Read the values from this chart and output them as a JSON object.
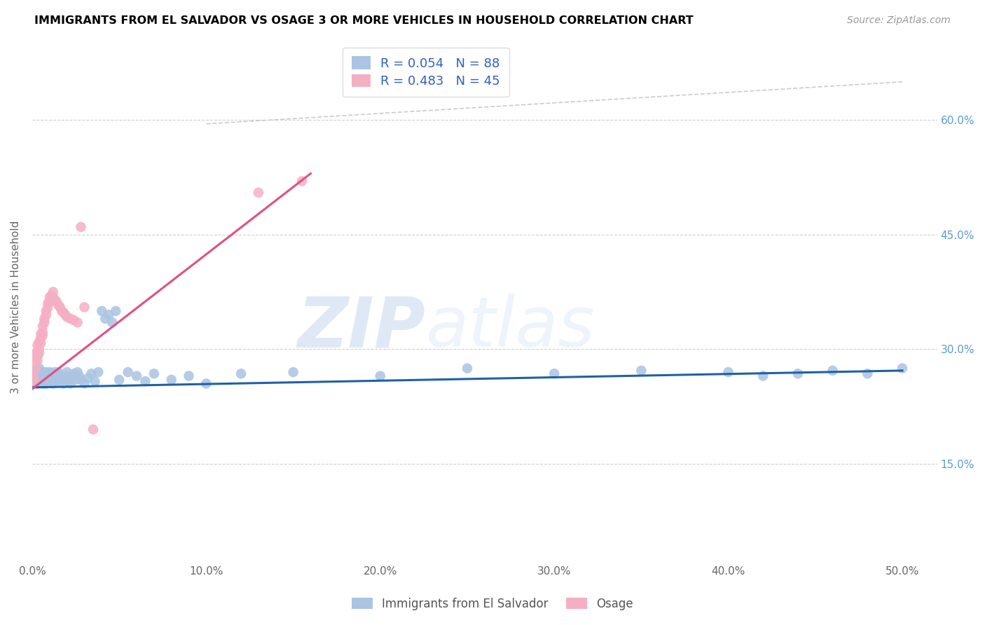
{
  "title": "IMMIGRANTS FROM EL SALVADOR VS OSAGE 3 OR MORE VEHICLES IN HOUSEHOLD CORRELATION CHART",
  "source": "Source: ZipAtlas.com",
  "ylabel": "3 or more Vehicles in Household",
  "ytick_labels": [
    "15.0%",
    "30.0%",
    "45.0%",
    "60.0%"
  ],
  "ytick_values": [
    0.15,
    0.3,
    0.45,
    0.6
  ],
  "xtick_labels": [
    "0.0%",
    "10.0%",
    "20.0%",
    "30.0%",
    "40.0%",
    "50.0%"
  ],
  "xtick_values": [
    0.0,
    0.1,
    0.2,
    0.3,
    0.4,
    0.5
  ],
  "xlim": [
    0.0,
    0.52
  ],
  "ylim": [
    0.02,
    0.69
  ],
  "blue_R": 0.054,
  "blue_N": 88,
  "pink_R": 0.483,
  "pink_N": 45,
  "blue_color": "#aac4e2",
  "pink_color": "#f5afc4",
  "blue_line_color": "#2060a8",
  "pink_line_color": "#e05080",
  "dashed_line_color": "#cccccc",
  "blue_scatter_x": [
    0.001,
    0.001,
    0.001,
    0.001,
    0.002,
    0.002,
    0.002,
    0.002,
    0.003,
    0.003,
    0.003,
    0.003,
    0.004,
    0.004,
    0.004,
    0.004,
    0.005,
    0.005,
    0.005,
    0.005,
    0.006,
    0.006,
    0.006,
    0.006,
    0.007,
    0.007,
    0.007,
    0.008,
    0.008,
    0.008,
    0.009,
    0.009,
    0.01,
    0.01,
    0.01,
    0.011,
    0.011,
    0.012,
    0.012,
    0.013,
    0.013,
    0.014,
    0.014,
    0.015,
    0.015,
    0.016,
    0.017,
    0.018,
    0.019,
    0.02,
    0.021,
    0.022,
    0.023,
    0.024,
    0.025,
    0.026,
    0.027,
    0.028,
    0.03,
    0.032,
    0.034,
    0.036,
    0.038,
    0.04,
    0.042,
    0.044,
    0.046,
    0.048,
    0.05,
    0.055,
    0.06,
    0.065,
    0.07,
    0.08,
    0.09,
    0.1,
    0.12,
    0.15,
    0.2,
    0.25,
    0.3,
    0.35,
    0.4,
    0.42,
    0.44,
    0.46,
    0.48,
    0.5
  ],
  "blue_scatter_y": [
    0.265,
    0.27,
    0.255,
    0.26,
    0.268,
    0.262,
    0.258,
    0.272,
    0.265,
    0.27,
    0.26,
    0.255,
    0.268,
    0.262,
    0.275,
    0.258,
    0.265,
    0.27,
    0.26,
    0.268,
    0.27,
    0.265,
    0.255,
    0.26,
    0.265,
    0.268,
    0.258,
    0.27,
    0.262,
    0.255,
    0.268,
    0.26,
    0.265,
    0.27,
    0.258,
    0.262,
    0.268,
    0.26,
    0.255,
    0.265,
    0.27,
    0.258,
    0.268,
    0.262,
    0.27,
    0.265,
    0.26,
    0.255,
    0.265,
    0.27,
    0.26,
    0.255,
    0.265,
    0.268,
    0.26,
    0.27,
    0.265,
    0.26,
    0.255,
    0.262,
    0.268,
    0.258,
    0.27,
    0.35,
    0.34,
    0.345,
    0.335,
    0.35,
    0.26,
    0.27,
    0.265,
    0.258,
    0.268,
    0.26,
    0.265,
    0.255,
    0.268,
    0.27,
    0.265,
    0.275,
    0.268,
    0.272,
    0.27,
    0.265,
    0.268,
    0.272,
    0.268,
    0.275
  ],
  "pink_scatter_x": [
    0.001,
    0.001,
    0.002,
    0.002,
    0.002,
    0.003,
    0.003,
    0.003,
    0.003,
    0.004,
    0.004,
    0.004,
    0.005,
    0.005,
    0.005,
    0.006,
    0.006,
    0.006,
    0.007,
    0.007,
    0.008,
    0.008,
    0.009,
    0.009,
    0.01,
    0.01,
    0.011,
    0.012,
    0.012,
    0.013,
    0.014,
    0.015,
    0.016,
    0.017,
    0.018,
    0.019,
    0.02,
    0.022,
    0.024,
    0.026,
    0.028,
    0.03,
    0.035,
    0.13,
    0.155
  ],
  "pink_scatter_y": [
    0.265,
    0.26,
    0.295,
    0.285,
    0.275,
    0.305,
    0.295,
    0.29,
    0.285,
    0.31,
    0.3,
    0.295,
    0.32,
    0.315,
    0.308,
    0.33,
    0.322,
    0.318,
    0.34,
    0.335,
    0.35,
    0.345,
    0.36,
    0.355,
    0.368,
    0.362,
    0.37,
    0.375,
    0.368,
    0.365,
    0.362,
    0.358,
    0.355,
    0.35,
    0.348,
    0.345,
    0.342,
    0.34,
    0.338,
    0.335,
    0.46,
    0.355,
    0.195,
    0.505,
    0.52
  ],
  "blue_line_x": [
    0.0,
    0.5
  ],
  "blue_line_y": [
    0.25,
    0.272
  ],
  "pink_line_x": [
    0.0,
    0.16
  ],
  "pink_line_y": [
    0.248,
    0.53
  ],
  "dashed_line_x": [
    0.1,
    0.5
  ],
  "dashed_line_y": [
    0.595,
    0.65
  ],
  "legend_blue_text": "R = 0.054   N = 88",
  "legend_pink_text": "R = 0.483   N = 45",
  "legend_text_color": "#3060c0",
  "watermark_zip": "ZIP",
  "watermark_atlas": "atlas",
  "watermark_color": "#c8d8f0",
  "bottom_legend_labels": [
    "Immigrants from El Salvador",
    "Osage"
  ],
  "bottom_legend_colors": [
    "#aac4e2",
    "#f5afc4"
  ]
}
